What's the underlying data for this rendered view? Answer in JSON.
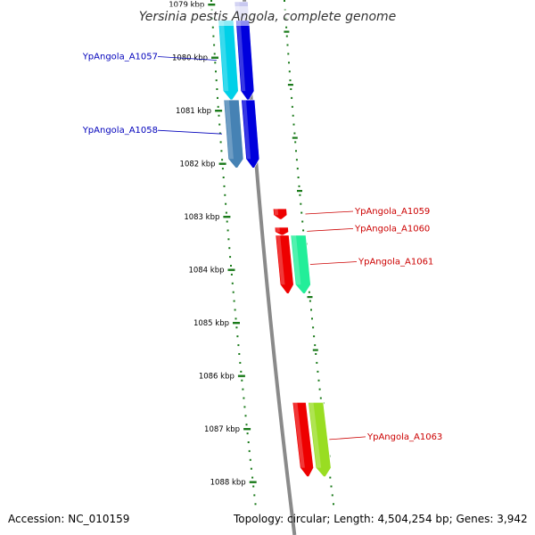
{
  "title": "Yersinia pestis Angola, complete genome",
  "footer": {
    "accession": "Accession: NC_010159",
    "topology": "Topology: circular; Length: 4,504,254 bp; Genes: 3,942"
  },
  "colors": {
    "backbone": "#8a8a8a",
    "tick": "#1a7a1a",
    "label_blue": "#0000bb",
    "label_red": "#cc0000"
  },
  "chart_data": {
    "type": "genome_map",
    "axis_range_kbp": [
      1079,
      1088
    ],
    "ticks": [
      {
        "kbp": 1079,
        "label": "1079 kbp"
      },
      {
        "kbp": 1080,
        "label": "1080 kbp"
      },
      {
        "kbp": 1081,
        "label": "1081 kbp"
      },
      {
        "kbp": 1082,
        "label": "1082 kbp"
      },
      {
        "kbp": 1083,
        "label": "1083 kbp"
      },
      {
        "kbp": 1084,
        "label": "1084 kbp"
      },
      {
        "kbp": 1085,
        "label": "1085 kbp"
      },
      {
        "kbp": 1086,
        "label": "1086 kbp"
      },
      {
        "kbp": 1087,
        "label": "1087 kbp"
      },
      {
        "kbp": 1088,
        "label": "1088 kbp"
      }
    ],
    "features": [
      {
        "kind": "cds",
        "label": "",
        "start": 1078.95,
        "end": 1079.3,
        "strand": -1,
        "ring": 1,
        "color": "#c8c8f0"
      },
      {
        "kind": "cds",
        "label": "",
        "start": 1079.3,
        "end": 1080.8,
        "strand": -1,
        "ring": 1,
        "color": "#0000dd"
      },
      {
        "kind": "cds",
        "label": "",
        "start": 1080.8,
        "end": 1082.08,
        "strand": -1,
        "ring": 1,
        "color": "#0000dd"
      },
      {
        "kind": "gene",
        "label": "YpAngola_A1057",
        "start": 1079.3,
        "end": 1080.8,
        "strand": -1,
        "ring": 2,
        "color": "#00d0e8",
        "label_color": "#0000bb"
      },
      {
        "kind": "gene",
        "label": "YpAngola_A1058",
        "start": 1080.8,
        "end": 1082.08,
        "strand": -1,
        "ring": 2,
        "color": "#4682b4",
        "label_color": "#0000bb"
      },
      {
        "kind": "cds",
        "label": "YpAngola_A1059",
        "start": 1082.85,
        "end": 1083.05,
        "strand": -1,
        "ring": 1,
        "color": "#ee0000",
        "label_color": "#cc0000"
      },
      {
        "kind": "cds",
        "label": "YpAngola_A1060",
        "start": 1083.2,
        "end": 1083.35,
        "strand": -1,
        "ring": 1,
        "color": "#ee0000",
        "label_color": "#cc0000"
      },
      {
        "kind": "cds",
        "label": "",
        "start": 1083.35,
        "end": 1084.45,
        "strand": -1,
        "ring": 1,
        "color": "#ee0000"
      },
      {
        "kind": "gene",
        "label": "YpAngola_A1061",
        "start": 1083.35,
        "end": 1084.45,
        "strand": -1,
        "ring": 2,
        "color": "#22ee99",
        "label_color": "#cc0000"
      },
      {
        "kind": "cds",
        "label": "",
        "start": 1086.5,
        "end": 1087.9,
        "strand": -1,
        "ring": 1,
        "color": "#ee0000"
      },
      {
        "kind": "gene",
        "label": "YpAngola_A1063",
        "start": 1086.5,
        "end": 1087.9,
        "strand": -1,
        "ring": 2,
        "color": "#99dd22",
        "label_color": "#cc0000"
      }
    ]
  }
}
